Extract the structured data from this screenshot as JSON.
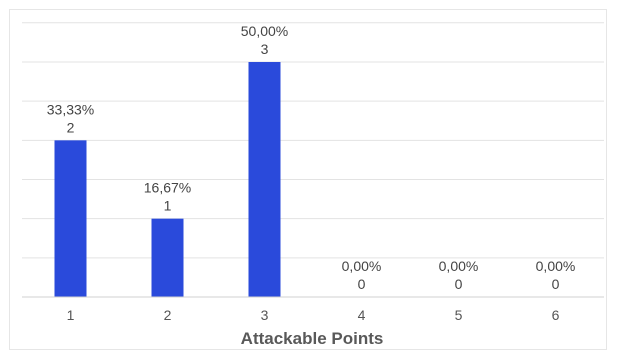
{
  "chart_data": {
    "type": "bar",
    "title": "",
    "xlabel": "Attackable Points",
    "ylabel": "",
    "categories": [
      "1",
      "2",
      "3",
      "4",
      "5",
      "6"
    ],
    "values": [
      2,
      1,
      3,
      0,
      0,
      0
    ],
    "percent_labels": [
      "33,33%",
      "16,67%",
      "50,00%",
      "0,00%",
      "0,00%",
      "0,00%"
    ],
    "count_labels": [
      "2",
      "1",
      "3",
      "0",
      "0",
      "0"
    ],
    "ylim": [
      0,
      3.75
    ],
    "grid": true,
    "bar_color": "#2a4adb"
  }
}
